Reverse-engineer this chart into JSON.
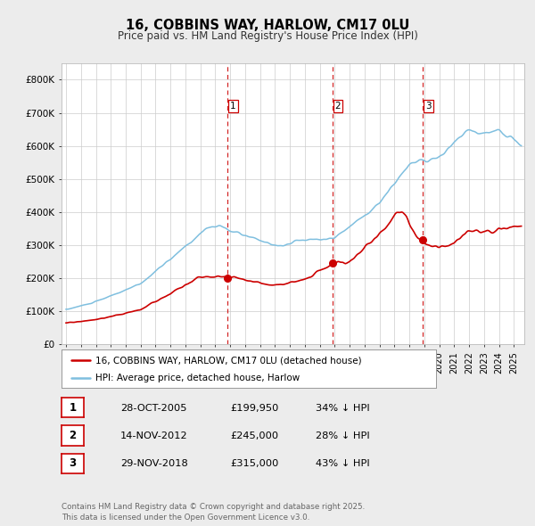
{
  "title": "16, COBBINS WAY, HARLOW, CM17 0LU",
  "subtitle": "Price paid vs. HM Land Registry's House Price Index (HPI)",
  "ylim": [
    0,
    850000
  ],
  "yticks": [
    0,
    100000,
    200000,
    300000,
    400000,
    500000,
    600000,
    700000,
    800000
  ],
  "ytick_labels": [
    "£0",
    "£100K",
    "£200K",
    "£300K",
    "£400K",
    "£500K",
    "£600K",
    "£700K",
    "£800K"
  ],
  "hpi_color": "#7fbfdf",
  "price_color": "#cc0000",
  "vline_color": "#cc0000",
  "transaction_dates": [
    2005.83,
    2012.87,
    2018.92
  ],
  "transaction_prices": [
    199950,
    245000,
    315000
  ],
  "transaction_labels": [
    "1",
    "2",
    "3"
  ],
  "legend_price_label": "16, COBBINS WAY, HARLOW, CM17 0LU (detached house)",
  "legend_hpi_label": "HPI: Average price, detached house, Harlow",
  "table_rows": [
    {
      "num": "1",
      "date": "28-OCT-2005",
      "price": "£199,950",
      "note": "34% ↓ HPI"
    },
    {
      "num": "2",
      "date": "14-NOV-2012",
      "price": "£245,000",
      "note": "28% ↓ HPI"
    },
    {
      "num": "3",
      "date": "29-NOV-2018",
      "price": "£315,000",
      "note": "43% ↓ HPI"
    }
  ],
  "footnote": "Contains HM Land Registry data © Crown copyright and database right 2025.\nThis data is licensed under the Open Government Licence v3.0.",
  "bg_color": "#ececec",
  "plot_bg_color": "#ffffff",
  "grid_color": "#cccccc",
  "xlim_start": 1994.7,
  "xlim_end": 2025.7
}
